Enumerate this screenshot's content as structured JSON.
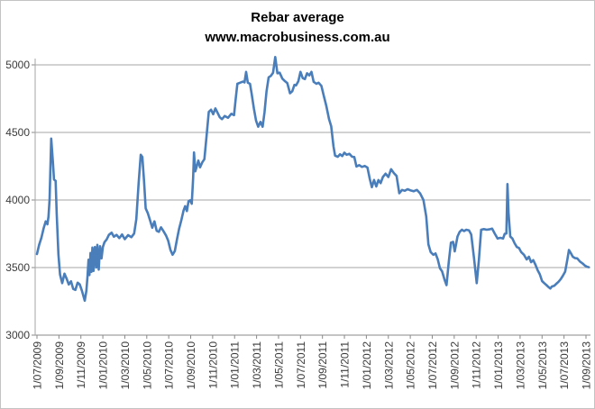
{
  "window": {
    "background": "#ffffff",
    "border_color": "#c3c3c3"
  },
  "chart_data": {
    "type": "line",
    "title": "Rebar average",
    "subtitle": "www.macrobusiness.com.au",
    "title_color": "#000000",
    "xlabel": "",
    "ylabel": "",
    "legend": "none",
    "grid": "horizontal",
    "gridline_color": "#a6a6a6",
    "axis_line_color": "#898989",
    "tick_label_color": "#3a3a3a",
    "ylim": [
      3000,
      5000
    ],
    "y_ticks": [
      3000,
      3500,
      4000,
      4500,
      5000
    ],
    "x_unit": "months since 1/07/2009",
    "xlim_months": [
      0,
      50.5
    ],
    "x_tick_step_months": 2,
    "x_tick_labels": [
      "1/07/2009",
      "1/09/2009",
      "1/11/2009",
      "1/01/2010",
      "1/03/2010",
      "1/05/2010",
      "1/07/2010",
      "1/09/2010",
      "1/11/2010",
      "1/01/2011",
      "1/03/2011",
      "1/05/2011",
      "1/07/2011",
      "1/09/2011",
      "1/11/2011",
      "1/01/2012",
      "1/03/2012",
      "1/05/2012",
      "1/07/2012",
      "1/09/2012",
      "1/11/2012",
      "1/01/2013",
      "1/03/2013",
      "1/05/2013",
      "1/07/2013",
      "1/09/2013"
    ],
    "series": [
      {
        "name": "Rebar average",
        "color": "#4a7ebb",
        "line_width": 2.6,
        "points": [
          [
            0,
            3600
          ],
          [
            0.2,
            3668
          ],
          [
            0.4,
            3720
          ],
          [
            0.6,
            3788
          ],
          [
            0.8,
            3842
          ],
          [
            0.95,
            3820
          ],
          [
            1.05,
            3878
          ],
          [
            1.15,
            4005
          ],
          [
            1.3,
            4455
          ],
          [
            1.45,
            4280
          ],
          [
            1.55,
            4152
          ],
          [
            1.7,
            4142
          ],
          [
            1.8,
            3898
          ],
          [
            1.95,
            3598
          ],
          [
            2.1,
            3448
          ],
          [
            2.3,
            3385
          ],
          [
            2.5,
            3455
          ],
          [
            2.7,
            3418
          ],
          [
            2.9,
            3375
          ],
          [
            3.1,
            3398
          ],
          [
            3.3,
            3342
          ],
          [
            3.5,
            3335
          ],
          [
            3.7,
            3388
          ],
          [
            3.9,
            3375
          ],
          [
            4.1,
            3328
          ],
          [
            4.35,
            3255
          ],
          [
            4.5,
            3328
          ],
          [
            4.6,
            3428
          ],
          [
            4.7,
            3558
          ],
          [
            4.78,
            3445
          ],
          [
            4.88,
            3608
          ],
          [
            4.96,
            3468
          ],
          [
            5.05,
            3648
          ],
          [
            5.15,
            3475
          ],
          [
            5.28,
            3652
          ],
          [
            5.4,
            3500
          ],
          [
            5.5,
            3668
          ],
          [
            5.62,
            3485
          ],
          [
            5.75,
            3658
          ],
          [
            5.88,
            3568
          ],
          [
            6.0,
            3652
          ],
          [
            6.15,
            3688
          ],
          [
            6.35,
            3708
          ],
          [
            6.55,
            3742
          ],
          [
            6.8,
            3758
          ],
          [
            7.0,
            3728
          ],
          [
            7.25,
            3742
          ],
          [
            7.5,
            3718
          ],
          [
            7.75,
            3745
          ],
          [
            8.0,
            3710
          ],
          [
            8.3,
            3740
          ],
          [
            8.6,
            3725
          ],
          [
            8.85,
            3752
          ],
          [
            9.05,
            3858
          ],
          [
            9.25,
            4118
          ],
          [
            9.45,
            4335
          ],
          [
            9.6,
            4318
          ],
          [
            9.75,
            4138
          ],
          [
            9.9,
            3938
          ],
          [
            10.1,
            3902
          ],
          [
            10.3,
            3848
          ],
          [
            10.5,
            3795
          ],
          [
            10.7,
            3842
          ],
          [
            10.9,
            3772
          ],
          [
            11.1,
            3765
          ],
          [
            11.3,
            3798
          ],
          [
            11.5,
            3772
          ],
          [
            11.75,
            3738
          ],
          [
            11.95,
            3698
          ],
          [
            12.15,
            3632
          ],
          [
            12.35,
            3595
          ],
          [
            12.55,
            3622
          ],
          [
            12.75,
            3708
          ],
          [
            12.95,
            3788
          ],
          [
            13.15,
            3852
          ],
          [
            13.35,
            3922
          ],
          [
            13.5,
            3955
          ],
          [
            13.65,
            3918
          ],
          [
            13.8,
            3990
          ],
          [
            13.95,
            3998
          ],
          [
            14.1,
            3972
          ],
          [
            14.22,
            4158
          ],
          [
            14.3,
            4352
          ],
          [
            14.42,
            4212
          ],
          [
            14.55,
            4248
          ],
          [
            14.7,
            4292
          ],
          [
            14.85,
            4242
          ],
          [
            15.05,
            4278
          ],
          [
            15.25,
            4302
          ],
          [
            15.45,
            4478
          ],
          [
            15.65,
            4652
          ],
          [
            15.85,
            4668
          ],
          [
            16.05,
            4635
          ],
          [
            16.25,
            4678
          ],
          [
            16.45,
            4645
          ],
          [
            16.65,
            4612
          ],
          [
            16.85,
            4598
          ],
          [
            17.1,
            4622
          ],
          [
            17.4,
            4608
          ],
          [
            17.7,
            4638
          ],
          [
            17.95,
            4628
          ],
          [
            18.1,
            4752
          ],
          [
            18.25,
            4860
          ],
          [
            18.5,
            4868
          ],
          [
            18.75,
            4876
          ],
          [
            18.9,
            4870
          ],
          [
            19.05,
            4948
          ],
          [
            19.2,
            4868
          ],
          [
            19.4,
            4860
          ],
          [
            19.55,
            4788
          ],
          [
            19.75,
            4678
          ],
          [
            19.95,
            4588
          ],
          [
            20.15,
            4542
          ],
          [
            20.35,
            4578
          ],
          [
            20.55,
            4542
          ],
          [
            20.72,
            4648
          ],
          [
            20.9,
            4802
          ],
          [
            21.1,
            4908
          ],
          [
            21.3,
            4918
          ],
          [
            21.5,
            4942
          ],
          [
            21.7,
            5058
          ],
          [
            21.9,
            4938
          ],
          [
            22.1,
            4942
          ],
          [
            22.35,
            4898
          ],
          [
            22.6,
            4878
          ],
          [
            22.8,
            4865
          ],
          [
            23.05,
            4790
          ],
          [
            23.25,
            4805
          ],
          [
            23.45,
            4852
          ],
          [
            23.6,
            4848
          ],
          [
            23.8,
            4878
          ],
          [
            24.0,
            4948
          ],
          [
            24.2,
            4902
          ],
          [
            24.4,
            4895
          ],
          [
            24.6,
            4938
          ],
          [
            24.8,
            4922
          ],
          [
            25.0,
            4948
          ],
          [
            25.2,
            4875
          ],
          [
            25.45,
            4860
          ],
          [
            25.65,
            4868
          ],
          [
            25.9,
            4845
          ],
          [
            26.1,
            4778
          ],
          [
            26.35,
            4698
          ],
          [
            26.6,
            4598
          ],
          [
            26.8,
            4545
          ],
          [
            27.0,
            4398
          ],
          [
            27.15,
            4328
          ],
          [
            27.4,
            4320
          ],
          [
            27.6,
            4338
          ],
          [
            27.8,
            4325
          ],
          [
            28.0,
            4350
          ],
          [
            28.2,
            4335
          ],
          [
            28.45,
            4342
          ],
          [
            28.7,
            4320
          ],
          [
            28.9,
            4318
          ],
          [
            29.1,
            4248
          ],
          [
            29.35,
            4258
          ],
          [
            29.6,
            4245
          ],
          [
            29.85,
            4252
          ],
          [
            30.1,
            4240
          ],
          [
            30.3,
            4158
          ],
          [
            30.5,
            4095
          ],
          [
            30.7,
            4148
          ],
          [
            30.9,
            4100
          ],
          [
            31.1,
            4148
          ],
          [
            31.3,
            4125
          ],
          [
            31.5,
            4170
          ],
          [
            31.75,
            4195
          ],
          [
            32.0,
            4170
          ],
          [
            32.25,
            4228
          ],
          [
            32.5,
            4200
          ],
          [
            32.75,
            4178
          ],
          [
            33.0,
            4050
          ],
          [
            33.25,
            4075
          ],
          [
            33.5,
            4068
          ],
          [
            33.75,
            4080
          ],
          [
            34.0,
            4072
          ],
          [
            34.3,
            4065
          ],
          [
            34.6,
            4075
          ],
          [
            34.9,
            4048
          ],
          [
            35.2,
            4000
          ],
          [
            35.45,
            3878
          ],
          [
            35.65,
            3672
          ],
          [
            35.85,
            3615
          ],
          [
            36.1,
            3595
          ],
          [
            36.3,
            3605
          ],
          [
            36.5,
            3560
          ],
          [
            36.7,
            3495
          ],
          [
            36.9,
            3472
          ],
          [
            37.1,
            3415
          ],
          [
            37.3,
            3370
          ],
          [
            37.5,
            3542
          ],
          [
            37.7,
            3685
          ],
          [
            37.9,
            3690
          ],
          [
            38.05,
            3620
          ],
          [
            38.3,
            3730
          ],
          [
            38.5,
            3765
          ],
          [
            38.7,
            3780
          ],
          [
            38.9,
            3770
          ],
          [
            39.1,
            3780
          ],
          [
            39.35,
            3775
          ],
          [
            39.55,
            3745
          ],
          [
            39.8,
            3570
          ],
          [
            40.05,
            3385
          ],
          [
            40.25,
            3555
          ],
          [
            40.45,
            3780
          ],
          [
            40.7,
            3785
          ],
          [
            40.95,
            3780
          ],
          [
            41.2,
            3783
          ],
          [
            41.45,
            3788
          ],
          [
            41.7,
            3750
          ],
          [
            41.95,
            3715
          ],
          [
            42.2,
            3720
          ],
          [
            42.45,
            3715
          ],
          [
            42.6,
            3750
          ],
          [
            42.75,
            3752
          ],
          [
            42.85,
            4118
          ],
          [
            42.95,
            3905
          ],
          [
            43.1,
            3730
          ],
          [
            43.3,
            3715
          ],
          [
            43.5,
            3680
          ],
          [
            43.7,
            3652
          ],
          [
            43.9,
            3645
          ],
          [
            44.1,
            3615
          ],
          [
            44.35,
            3595
          ],
          [
            44.6,
            3560
          ],
          [
            44.8,
            3580
          ],
          [
            45.0,
            3540
          ],
          [
            45.2,
            3555
          ],
          [
            45.4,
            3520
          ],
          [
            45.6,
            3480
          ],
          [
            45.8,
            3450
          ],
          [
            46.0,
            3400
          ],
          [
            46.2,
            3385
          ],
          [
            46.4,
            3370
          ],
          [
            46.6,
            3355
          ],
          [
            46.75,
            3345
          ],
          [
            46.9,
            3360
          ],
          [
            47.1,
            3365
          ],
          [
            47.3,
            3380
          ],
          [
            47.5,
            3395
          ],
          [
            47.7,
            3415
          ],
          [
            47.9,
            3440
          ],
          [
            48.1,
            3470
          ],
          [
            48.3,
            3558
          ],
          [
            48.45,
            3630
          ],
          [
            48.6,
            3610
          ],
          [
            48.8,
            3580
          ],
          [
            49.0,
            3570
          ],
          [
            49.2,
            3568
          ],
          [
            49.45,
            3545
          ],
          [
            49.7,
            3530
          ],
          [
            49.9,
            3515
          ],
          [
            50.1,
            3506
          ],
          [
            50.25,
            3503
          ]
        ]
      }
    ]
  }
}
